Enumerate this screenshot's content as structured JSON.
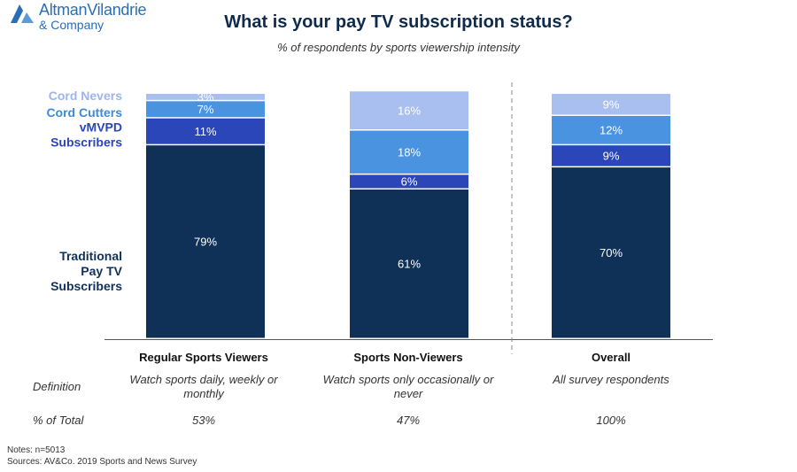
{
  "logo": {
    "line1": "AltmanVilandrie",
    "line2": "& Company",
    "color": "#2a6fb6"
  },
  "title": "What is your pay TV subscription status?",
  "subtitle": "% of respondents by sports viewership intensity",
  "chart_data": {
    "type": "bar",
    "stacked": true,
    "percent": true,
    "categories": [
      "Regular Sports Viewers",
      "Sports Non-Viewers",
      "Overall"
    ],
    "series": [
      {
        "name": "Traditional Pay TV Subscribers",
        "values": [
          79,
          61,
          70
        ],
        "color": "#0f3158",
        "label_color": "#0f3158"
      },
      {
        "name": "vMVPD Subscribers",
        "values": [
          11,
          6,
          9
        ],
        "color": "#2a46b8",
        "label_color": "#2a46b8"
      },
      {
        "name": "Cord Cutters",
        "values": [
          7,
          18,
          12
        ],
        "color": "#4a93e0",
        "label_color": "#3d8ad8"
      },
      {
        "name": "Cord Nevers",
        "values": [
          3,
          16,
          9
        ],
        "color": "#a9bff0",
        "label_color": "#9db4ec"
      }
    ],
    "value_labels": [
      [
        "79%",
        "11%",
        "7%",
        "3%"
      ],
      [
        "61%",
        "6%",
        "18%",
        "16%"
      ],
      [
        "70%",
        "9%",
        "12%",
        "9%"
      ]
    ],
    "ylim": [
      0,
      100
    ],
    "legend": "left",
    "separator_before_category": 2
  },
  "definitions": {
    "label": "Definition",
    "values": [
      "Watch sports daily, weekly or monthly",
      "Watch sports only occasionally or never",
      "All survey respondents"
    ]
  },
  "totals": {
    "label": "% of Total",
    "values": [
      "53%",
      "47%",
      "100%"
    ]
  },
  "notes": "Notes: n=5013",
  "sources": "Sources: AV&Co. 2019 Sports and News Survey"
}
